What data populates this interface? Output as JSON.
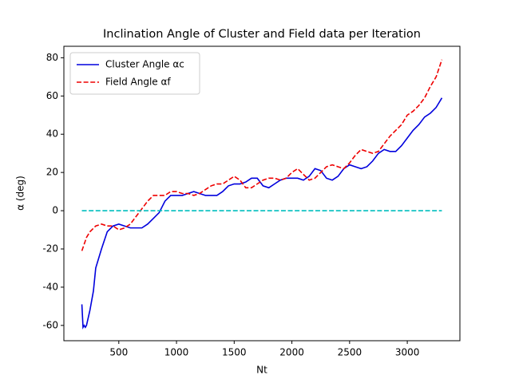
{
  "chart_data": {
    "type": "line",
    "title": "Inclination Angle of Cluster and Field data per Iteration",
    "xlabel": "Nt",
    "ylabel": "α (deg)",
    "xlim": [
      24,
      3456
    ],
    "xticks": [
      500,
      1000,
      1500,
      2000,
      2500,
      3000
    ],
    "ylim": [
      -68,
      86
    ],
    "yticks": [
      -60,
      -40,
      -20,
      0,
      20,
      40,
      60,
      80
    ],
    "legend": "upper left",
    "series": [
      {
        "name": "Cluster Angle αc",
        "color": "#0000dd",
        "linestyle": "solid",
        "x": [
          180,
          190,
          200,
          210,
          220,
          250,
          280,
          300,
          350,
          400,
          450,
          500,
          550,
          600,
          650,
          700,
          750,
          800,
          850,
          900,
          950,
          1000,
          1050,
          1100,
          1150,
          1200,
          1250,
          1300,
          1350,
          1400,
          1450,
          1500,
          1550,
          1600,
          1650,
          1700,
          1750,
          1800,
          1850,
          1900,
          1950,
          2000,
          2050,
          2100,
          2150,
          2200,
          2250,
          2300,
          2350,
          2400,
          2450,
          2500,
          2550,
          2600,
          2650,
          2700,
          2750,
          2800,
          2850,
          2900,
          2950,
          3000,
          3050,
          3100,
          3150,
          3200,
          3250,
          3300
        ],
        "values": [
          -49,
          -61,
          -60,
          -61,
          -60,
          -52,
          -42,
          -30,
          -20,
          -11,
          -8,
          -7,
          -8,
          -9,
          -9,
          -9,
          -7,
          -4,
          -1,
          5,
          8,
          8,
          8,
          9,
          10,
          9,
          8,
          8,
          8,
          10,
          13,
          14,
          14,
          15,
          17,
          17,
          13,
          12,
          14,
          16,
          17,
          17,
          17,
          16,
          18,
          22,
          21,
          17,
          16,
          18,
          22,
          24,
          23,
          22,
          23,
          26,
          30,
          32,
          31,
          31,
          34,
          38,
          42,
          45,
          49,
          51,
          54,
          59
        ]
      },
      {
        "name": "Field Angle αf",
        "color": "#ee0000",
        "linestyle": "dashed",
        "x": [
          180,
          220,
          250,
          300,
          350,
          400,
          450,
          500,
          550,
          600,
          650,
          700,
          750,
          800,
          850,
          900,
          950,
          1000,
          1050,
          1100,
          1150,
          1200,
          1250,
          1300,
          1350,
          1400,
          1450,
          1500,
          1550,
          1600,
          1650,
          1700,
          1750,
          1800,
          1850,
          1900,
          1950,
          2000,
          2050,
          2100,
          2150,
          2200,
          2250,
          2300,
          2350,
          2400,
          2450,
          2500,
          2550,
          2600,
          2650,
          2700,
          2750,
          2800,
          2850,
          2900,
          2950,
          3000,
          3050,
          3100,
          3150,
          3200,
          3250,
          3300
        ],
        "values": [
          -21,
          -14,
          -11,
          -8,
          -7,
          -8,
          -8,
          -10,
          -9,
          -7,
          -3,
          1,
          5,
          8,
          8,
          8,
          10,
          10,
          9,
          9,
          8,
          9,
          11,
          13,
          14,
          14,
          16,
          18,
          16,
          12,
          12,
          14,
          16,
          17,
          17,
          16,
          17,
          20,
          22,
          19,
          16,
          17,
          20,
          23,
          24,
          23,
          22,
          25,
          29,
          32,
          31,
          30,
          31,
          35,
          39,
          42,
          45,
          50,
          52,
          55,
          59,
          65,
          70,
          79
        ]
      },
      {
        "color": "#00bfbf",
        "linestyle": "dashed",
        "x": [
          180,
          3300
        ],
        "values": [
          0,
          0
        ]
      }
    ]
  }
}
